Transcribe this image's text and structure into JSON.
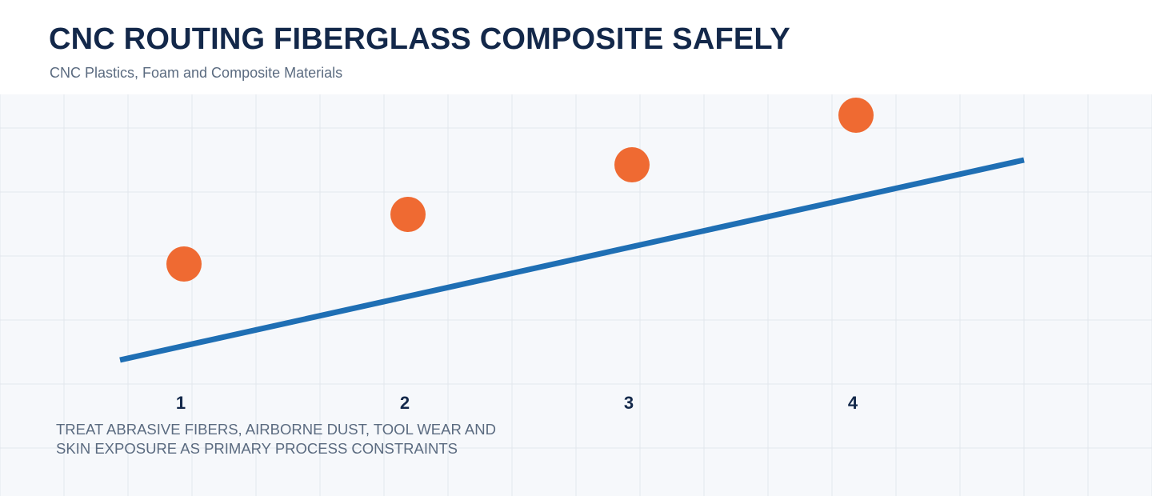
{
  "header": {
    "title": "CNC ROUTING FIBERGLASS COMPOSITE SAFELY",
    "subtitle": "CNC Plastics, Foam and Composite Materials"
  },
  "steps": [
    {
      "label": "1",
      "level": 1
    },
    {
      "label": "2",
      "level": 2
    },
    {
      "label": "3",
      "level": 3
    },
    {
      "label": "4",
      "level": 4
    }
  ],
  "caption": {
    "lines": [
      "TREAT ABRASIVE FIBERS, AIRBORNE DUST, TOOL WEAR AND",
      "SKIN EXPOSURE AS PRIMARY PROCESS CONSTRAINTS"
    ]
  },
  "colors": {
    "title": "#13284a",
    "subtitle": "#5b6b80",
    "grid_background": "#f6f8fb",
    "grid_line": "#e3e7ee",
    "trend_line": "#1f6fb4",
    "marker": "#ef6a32",
    "step_label": "#13284a"
  }
}
